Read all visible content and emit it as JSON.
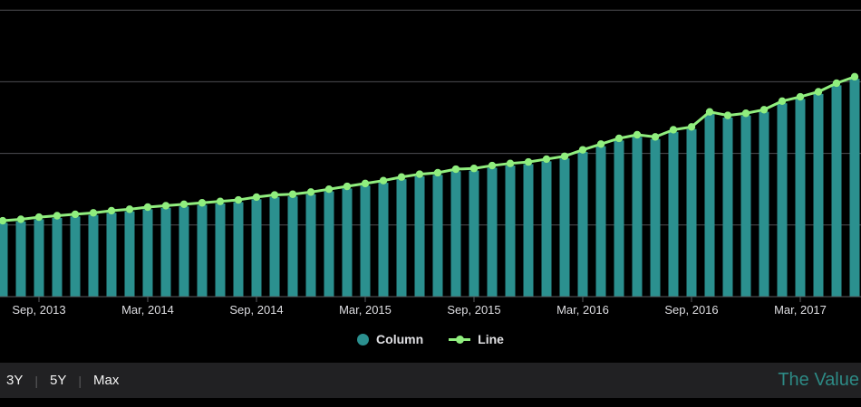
{
  "chart_data": {
    "type": "combo",
    "title": "",
    "xlabel": "",
    "ylabel": "",
    "ylim": [
      0,
      4
    ],
    "grid": true,
    "legend_position": "bottom-center",
    "x": [
      "Jul 2013",
      "Aug 2013",
      "Sep 2013",
      "Oct 2013",
      "Nov 2013",
      "Dec 2013",
      "Jan 2014",
      "Feb 2014",
      "Mar 2014",
      "Apr 2014",
      "May 2014",
      "Jun 2014",
      "Jul 2014",
      "Aug 2014",
      "Sep 2014",
      "Oct 2014",
      "Nov 2014",
      "Dec 2014",
      "Jan 2015",
      "Feb 2015",
      "Mar 2015",
      "Apr 2015",
      "May 2015",
      "Jun 2015",
      "Jul 2015",
      "Aug 2015",
      "Sep 2015",
      "Oct 2015",
      "Nov 2015",
      "Dec 2015",
      "Jan 2016",
      "Feb 2016",
      "Mar 2016",
      "Apr 2016",
      "May 2016",
      "Jun 2016",
      "Jul 2016",
      "Aug 2016",
      "Sep 2016",
      "Oct 2016",
      "Nov 2016",
      "Dec 2016",
      "Jan 2017",
      "Feb 2017",
      "Mar 2017",
      "Apr 2017",
      "May 2017",
      "Jun 2017"
    ],
    "x_tick_labels": [
      {
        "index": 2,
        "label": "Sep, 2013"
      },
      {
        "index": 8,
        "label": "Mar, 2014"
      },
      {
        "index": 14,
        "label": "Sep, 2014"
      },
      {
        "index": 20,
        "label": "Mar, 2015"
      },
      {
        "index": 26,
        "label": "Sep, 2015"
      },
      {
        "index": 32,
        "label": "Mar, 2016"
      },
      {
        "index": 38,
        "label": "Sep, 2016"
      },
      {
        "index": 44,
        "label": "Mar, 2017"
      }
    ],
    "series": [
      {
        "name": "Column",
        "type": "column",
        "color": "#2b908f",
        "values": [
          1.03,
          1.05,
          1.08,
          1.1,
          1.12,
          1.14,
          1.17,
          1.19,
          1.22,
          1.24,
          1.26,
          1.28,
          1.3,
          1.32,
          1.36,
          1.39,
          1.4,
          1.43,
          1.47,
          1.51,
          1.55,
          1.59,
          1.64,
          1.68,
          1.7,
          1.75,
          1.76,
          1.8,
          1.83,
          1.85,
          1.89,
          1.93,
          2.02,
          2.1,
          2.18,
          2.23,
          2.2,
          2.3,
          2.34,
          2.55,
          2.5,
          2.53,
          2.58,
          2.7,
          2.76,
          2.83,
          2.95,
          3.04
        ]
      },
      {
        "name": "Line",
        "type": "line",
        "color": "#90ee7e",
        "values": [
          1.06,
          1.08,
          1.11,
          1.13,
          1.15,
          1.17,
          1.2,
          1.22,
          1.25,
          1.27,
          1.29,
          1.31,
          1.33,
          1.35,
          1.39,
          1.42,
          1.43,
          1.46,
          1.5,
          1.54,
          1.58,
          1.62,
          1.67,
          1.71,
          1.73,
          1.78,
          1.79,
          1.83,
          1.86,
          1.88,
          1.92,
          1.96,
          2.05,
          2.13,
          2.21,
          2.26,
          2.23,
          2.33,
          2.37,
          2.58,
          2.53,
          2.56,
          2.61,
          2.73,
          2.79,
          2.86,
          2.98,
          3.07
        ]
      }
    ],
    "colors": {
      "background": "#000000",
      "grid_line": "#4e4e52",
      "axis_line": "#5a5a5e",
      "tick_label": "#dfdfe3"
    }
  },
  "legend": {
    "items": [
      {
        "label": "Column",
        "color": "#2b908f"
      },
      {
        "label": "Line",
        "color": "#90ee7e"
      }
    ]
  },
  "range_selector": {
    "separator": "|",
    "buttons": [
      {
        "label": "3Y"
      },
      {
        "label": "5Y"
      },
      {
        "label": "Max"
      }
    ]
  },
  "watermark": {
    "text": "The Value",
    "color": "#2d8a85"
  }
}
